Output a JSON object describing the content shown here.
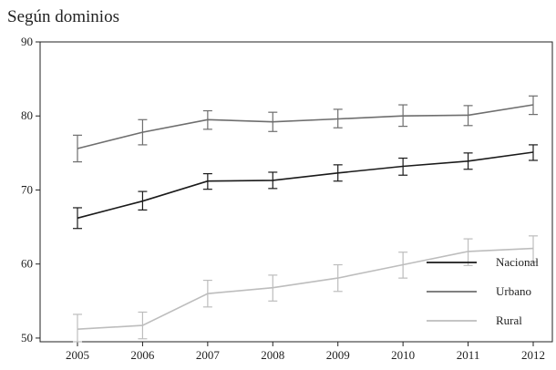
{
  "title": "Según dominios",
  "chart_data": {
    "type": "line",
    "title": "Según dominios",
    "xlabel": "",
    "ylabel": "",
    "x": [
      2005,
      2006,
      2007,
      2008,
      2009,
      2010,
      2011,
      2012
    ],
    "ylim": [
      49.5,
      90
    ],
    "yticks": [
      50,
      60,
      70,
      80,
      90
    ],
    "grid": false,
    "legend_position": "bottom-right",
    "error_bars": true,
    "series": [
      {
        "name": "Nacional",
        "color": "#1a1a1a",
        "values": [
          66.2,
          68.5,
          71.2,
          71.3,
          72.3,
          73.2,
          73.9,
          75.1
        ],
        "err_low": [
          64.8,
          67.3,
          70.1,
          70.2,
          71.2,
          72.0,
          72.8,
          74.0
        ],
        "err_high": [
          67.6,
          69.8,
          72.2,
          72.4,
          73.4,
          74.3,
          75.0,
          76.1
        ]
      },
      {
        "name": "Urbano",
        "color": "#6e6e6e",
        "values": [
          75.6,
          77.8,
          79.5,
          79.2,
          79.6,
          80.0,
          80.1,
          81.5
        ],
        "err_low": [
          73.8,
          76.1,
          78.2,
          77.9,
          78.4,
          78.6,
          78.7,
          80.2
        ],
        "err_high": [
          77.4,
          79.5,
          80.7,
          80.5,
          80.9,
          81.5,
          81.4,
          82.7
        ]
      },
      {
        "name": "Rural",
        "color": "#bdbdbd",
        "values": [
          51.2,
          51.7,
          56.0,
          56.8,
          58.1,
          59.9,
          61.7,
          62.1
        ],
        "err_low": [
          49.5,
          49.9,
          54.2,
          55.0,
          56.3,
          58.1,
          59.8,
          60.3
        ],
        "err_high": [
          53.2,
          53.5,
          57.8,
          58.5,
          59.9,
          61.6,
          63.4,
          63.8
        ]
      }
    ]
  }
}
